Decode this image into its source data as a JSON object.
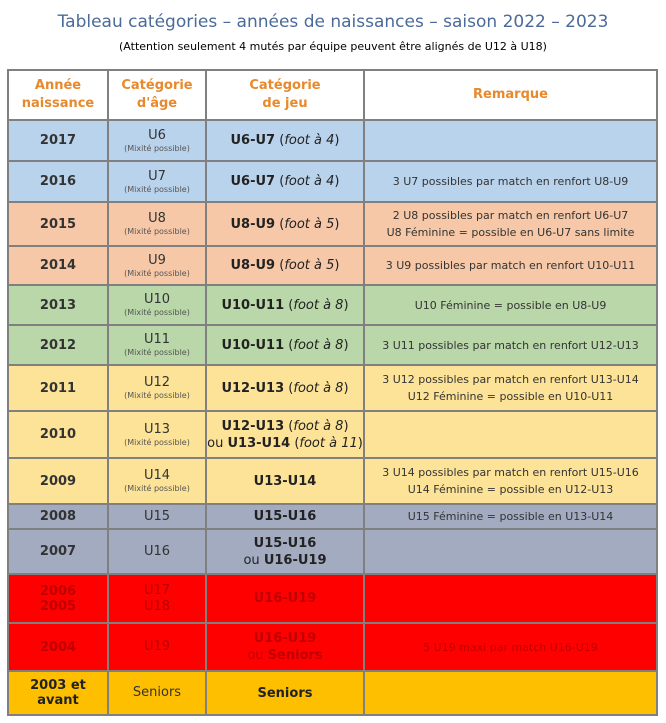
{
  "title": "Tableau catégories – années de naissances – saison 2022 – 2023",
  "subtitle": "(Attention seulement 4 mutés par équipe peuvent être alignés de U12 à U18)",
  "headers": {
    "annee_l1": "Année",
    "annee_l2": "naissance",
    "cat_l1": "Catégorie",
    "cat_l2": "d'âge",
    "jeu_l1": "Catégorie",
    "jeu_l2": "de jeu",
    "remarque": "Remarque"
  },
  "mix": "(Mixité possible)",
  "rows": [
    {
      "color": "#b9d3ec",
      "year": "2017",
      "cat": "U6",
      "jeu_b": "U6-U7",
      "jeu_i": "foot à 4",
      "rem1": "",
      "rem2": ""
    },
    {
      "color": "#b9d3ec",
      "year": "2016",
      "cat": "U7",
      "jeu_b": "U6-U7",
      "jeu_i": "foot à 4",
      "rem1": "3 U7 possibles par match en renfort U8-U9",
      "rem2": ""
    },
    {
      "color": "#f6c8a8",
      "year": "2015",
      "cat": "U8",
      "jeu_b": "U8-U9",
      "jeu_i": "foot à 5",
      "rem1": "2 U8 possibles par match en renfort U6-U7",
      "rem2": "U8 Féminine = possible en U6-U7 sans limite"
    },
    {
      "color": "#f6c8a8",
      "year": "2014",
      "cat": "U9",
      "jeu_b": "U8-U9",
      "jeu_i": "foot à 5",
      "rem1": "3 U9 possibles par match en renfort U10-U11",
      "rem2": ""
    },
    {
      "color": "#b9d7a8",
      "year": "2013",
      "cat": "U10",
      "jeu_b": "U10-U11",
      "jeu_i": "foot à 8",
      "rem1": "U10 Féminine = possible en U8-U9",
      "rem2": ""
    },
    {
      "color": "#b9d7a8",
      "year": "2012",
      "cat": "U11",
      "jeu_b": "U10-U11",
      "jeu_i": "foot à 8",
      "rem1": "3 U11 possibles par match en renfort U12-U13",
      "rem2": ""
    },
    {
      "color": "#fde397",
      "year": "2011",
      "cat": "U12",
      "jeu_b": "U12-U13",
      "jeu_i": "foot à 8",
      "rem1": "3 U12 possibles par match en renfort U13-U14",
      "rem2": "U12 Féminine = possible en U10-U11"
    },
    {
      "color": "#fde397",
      "year": "2010",
      "cat": "U13",
      "jeu_b": "U12-U13",
      "jeu_i": "foot à 8",
      "jeu2_pre": "ou",
      "jeu2_b": "U13-U14",
      "jeu2_i": "foot à 11",
      "rem1": "",
      "rem2": ""
    },
    {
      "color": "#fde397",
      "year": "2009",
      "cat": "U14",
      "jeu_b": "U13-U14",
      "jeu_i": "",
      "rem1": "3 U14 possibles par match en renfort U15-U16",
      "rem2": "U14 Féminine = possible en U12-U13"
    },
    {
      "color": "#a3abc1",
      "year": "2008",
      "cat": "U15",
      "jeu_b": "U15-U16",
      "jeu_i": "",
      "rem1": "U15 Féminine = possible en U13-U14",
      "rem2": ""
    },
    {
      "color": "#a3abc1",
      "year": "2007",
      "cat": "U16",
      "jeu_b": "U15-U16",
      "jeu_i": "",
      "jeu2_pre": "ou",
      "jeu2_b": "U16-U19",
      "rem1": "",
      "rem2": ""
    },
    {
      "color": "#fe0000",
      "year": "2006",
      "year2": "2005",
      "cat": "U17",
      "cat2": "U18",
      "jeu_b": "U16-U19",
      "jeu_i": "",
      "rem1": "",
      "rem2": ""
    },
    {
      "color": "#fe0000",
      "year": "2004",
      "cat": "U19",
      "jeu_b": "U16-U19",
      "jeu_i": "",
      "jeu2_pre": "ou",
      "jeu2_b": "Seniors",
      "rem1": "5 U19 maxi par match U16-U19",
      "rem2": ""
    },
    {
      "color": "#fdbf00",
      "year": "2003 et",
      "year2": "avant",
      "cat": "Seniors",
      "jeu_b": "Seniors",
      "jeu_i": "",
      "rem1": "",
      "rem2": ""
    }
  ]
}
